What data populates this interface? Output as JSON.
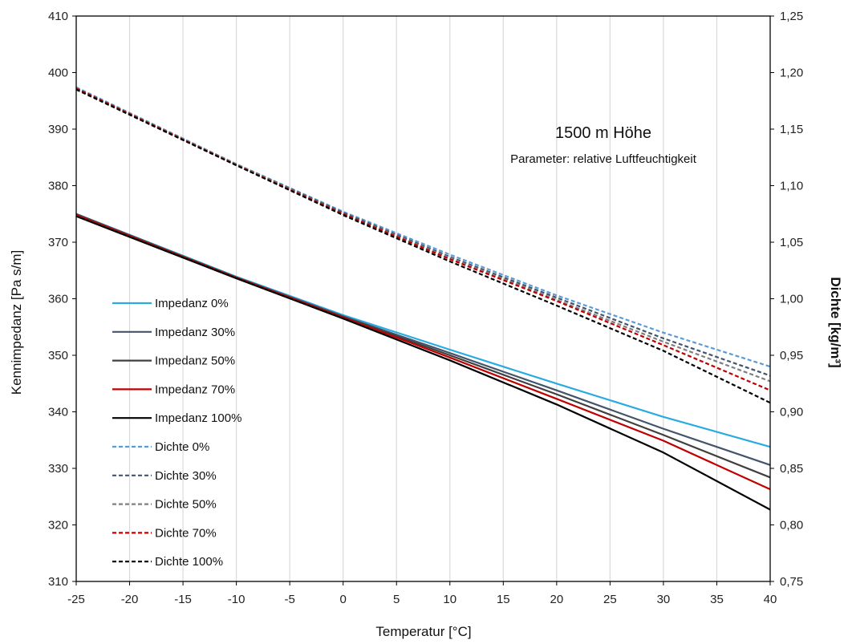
{
  "chart_data": {
    "type": "line",
    "annotation": {
      "title": "1500 m Höhe",
      "subtitle": "Parameter: relative Luftfeuchtigkeit"
    },
    "xlabel": "Temperatur  [°C]",
    "ylabel_left": "Kennimpedanz  [Pa s/m]",
    "ylabel_right": "Dichte [kg/m³]",
    "xlim": [
      -25,
      40
    ],
    "ylim_left": [
      310,
      410
    ],
    "ylim_right": [
      0.75,
      1.25
    ],
    "x_ticks": [
      "-25",
      "-20",
      "-15",
      "-10",
      "-5",
      "0",
      "5",
      "10",
      "15",
      "20",
      "25",
      "30",
      "35",
      "40"
    ],
    "y_left_ticks": [
      "310",
      "320",
      "330",
      "340",
      "350",
      "360",
      "370",
      "380",
      "390",
      "400",
      "410"
    ],
    "y_right_ticks": [
      "0,75",
      "0,80",
      "0,85",
      "0,90",
      "0,95",
      "1,00",
      "1,05",
      "1,10",
      "1,15",
      "1,20",
      "1,25"
    ],
    "grid": "vertical",
    "legend_position": "left",
    "x": [
      -25,
      -10,
      0,
      10,
      20,
      30,
      40
    ],
    "series": [
      {
        "name": "Impedanz 0%",
        "axis": "left",
        "style": "solid",
        "color": "#29ABE2",
        "values": [
          375.0,
          363.9,
          357.1,
          351.0,
          345.0,
          339.1,
          333.8
        ]
      },
      {
        "name": "Impedanz 30%",
        "axis": "left",
        "style": "solid",
        "color": "#44546A",
        "values": [
          375.0,
          363.8,
          356.9,
          350.4,
          343.8,
          337.0,
          330.6
        ]
      },
      {
        "name": "Impedanz 50%",
        "axis": "left",
        "style": "solid",
        "color": "#404040",
        "values": [
          374.9,
          363.7,
          356.8,
          350.0,
          343.1,
          335.9,
          328.4
        ]
      },
      {
        "name": "Impedanz 70%",
        "axis": "left",
        "style": "solid",
        "color": "#C00000",
        "values": [
          374.8,
          363.7,
          356.7,
          349.6,
          342.3,
          334.9,
          326.3
        ]
      },
      {
        "name": "Impedanz 100%",
        "axis": "left",
        "style": "solid",
        "color": "#000000",
        "values": [
          374.6,
          363.6,
          356.5,
          349.1,
          341.3,
          332.8,
          322.7
        ]
      },
      {
        "name": "Dichte 0%",
        "axis": "right",
        "style": "dashed",
        "color": "#5B9BD5",
        "values": [
          1.187,
          1.119,
          1.077,
          1.039,
          1.003,
          0.97,
          0.94
        ]
      },
      {
        "name": "Dichte 30%",
        "axis": "right",
        "style": "dashed",
        "color": "#44546A",
        "values": [
          1.186,
          1.119,
          1.076,
          1.037,
          1.001,
          0.965,
          0.932
        ]
      },
      {
        "name": "Dichte 50%",
        "axis": "right",
        "style": "dashed",
        "color": "#7F7F7F",
        "values": [
          1.186,
          1.119,
          1.075,
          1.036,
          0.999,
          0.962,
          0.927
        ]
      },
      {
        "name": "Dichte 70%",
        "axis": "right",
        "style": "dashed",
        "color": "#C00000",
        "values": [
          1.186,
          1.118,
          1.075,
          1.035,
          0.998,
          0.959,
          0.919
        ]
      },
      {
        "name": "Dichte 100%",
        "axis": "right",
        "style": "dashed",
        "color": "#000000",
        "values": [
          1.185,
          1.118,
          1.074,
          1.033,
          0.994,
          0.954,
          0.908
        ]
      }
    ]
  }
}
